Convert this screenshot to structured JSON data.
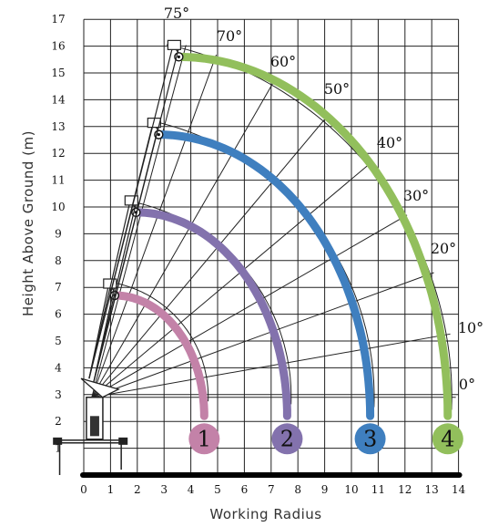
{
  "chart_data": {
    "type": "diagram",
    "xlabel": "Working Radius",
    "ylabel": "Height Above Ground (m)",
    "xlim": [
      0,
      14
    ],
    "ylim": [
      0,
      17
    ],
    "x_ticks": [
      "0",
      "1",
      "2",
      "3",
      "4",
      "5",
      "6",
      "7",
      "8",
      "9",
      "10",
      "11",
      "12",
      "13",
      "14"
    ],
    "y_ticks": [
      "1",
      "2",
      "3",
      "4",
      "5",
      "6",
      "7",
      "8",
      "9",
      "10",
      "11",
      "12",
      "13",
      "14",
      "15",
      "16",
      "17"
    ],
    "angle_labels": [
      "75°",
      "70°",
      "60°",
      "50°",
      "40°",
      "30°",
      "20°",
      "10°",
      "0°"
    ],
    "boom_sections": [
      {
        "number": "1",
        "color": "#c382a8",
        "tip_x": 1.15,
        "tip_y": 6.7,
        "radius": 4.5,
        "pivot": [
          0.3,
          2.9
        ]
      },
      {
        "number": "2",
        "color": "#8372ad",
        "tip_x": 1.95,
        "tip_y": 9.8,
        "radius": 7.6,
        "pivot": [
          0.3,
          2.9
        ]
      },
      {
        "number": "3",
        "color": "#3f7fbf",
        "tip_x": 2.8,
        "tip_y": 12.7,
        "radius": 10.7,
        "pivot": [
          0.3,
          2.9
        ]
      },
      {
        "number": "4",
        "color": "#92bf5c",
        "tip_x": 3.55,
        "tip_y": 15.6,
        "radius": 13.6,
        "pivot": [
          0.3,
          2.9
        ]
      }
    ],
    "grid": true
  }
}
